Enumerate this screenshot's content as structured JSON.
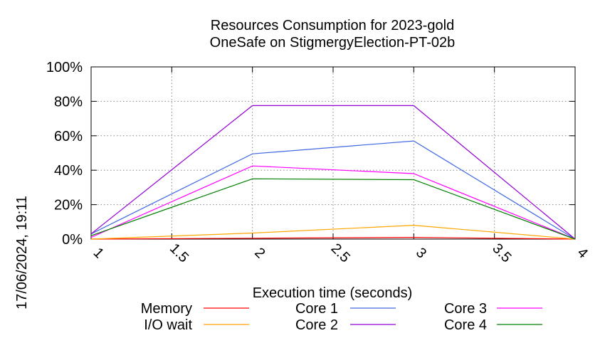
{
  "chart_data": {
    "type": "line",
    "title": "Resources Consumption for 2023-gold",
    "subtitle": "OneSafe on StigmergyElection-PT-02b",
    "xlabel": "Execution time (seconds)",
    "ylabel": "",
    "side_label": "17/06/2024, 19:11",
    "xlim": [
      1,
      4
    ],
    "ylim": [
      0,
      100
    ],
    "x_ticks": [
      1,
      1.5,
      2,
      2.5,
      3,
      3.5,
      4
    ],
    "x_tick_labels": [
      "1",
      "1.5",
      "2",
      "2.5",
      "3",
      "3.5",
      "4"
    ],
    "y_ticks": [
      0,
      20,
      40,
      60,
      80,
      100
    ],
    "y_tick_labels": [
      "0%",
      "20%",
      "40%",
      "60%",
      "80%",
      "100%"
    ],
    "grid": true,
    "legend_position": "bottom",
    "x": [
      1,
      2,
      3,
      4
    ],
    "series": [
      {
        "name": "Memory",
        "color": "#ff0000",
        "values": [
          0,
          0.5,
          1,
          0
        ]
      },
      {
        "name": "I/O wait",
        "color": "#ffa500",
        "values": [
          0,
          3.5,
          8,
          0
        ]
      },
      {
        "name": "Core 1",
        "color": "#4169e1",
        "values": [
          3,
          49.5,
          57,
          0
        ]
      },
      {
        "name": "Core 2",
        "color": "#9400d3",
        "values": [
          3,
          77.5,
          77.5,
          0
        ]
      },
      {
        "name": "Core 3",
        "color": "#ff00ff",
        "values": [
          1,
          42.5,
          38,
          0
        ]
      },
      {
        "name": "Core 4",
        "color": "#008000",
        "values": [
          2,
          35,
          34.5,
          0
        ]
      }
    ]
  }
}
